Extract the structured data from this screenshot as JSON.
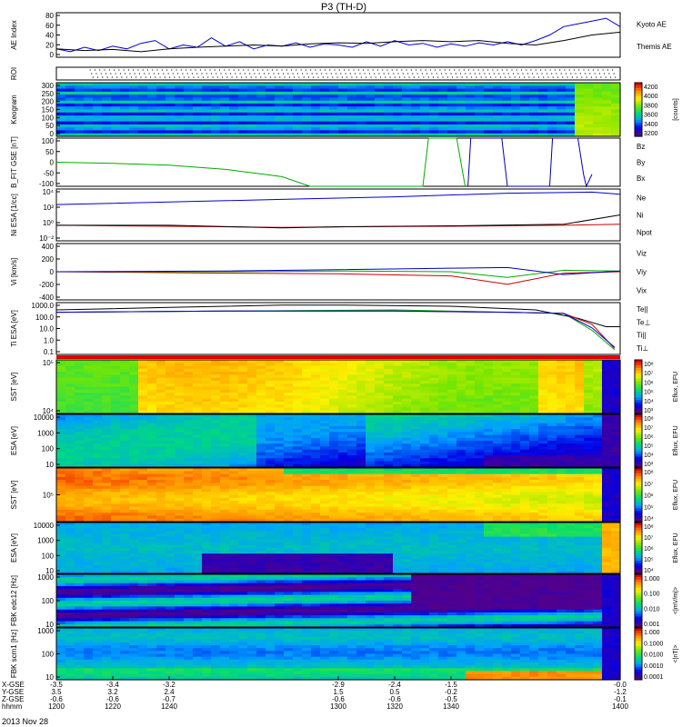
{
  "title": "P3 (TH-D)",
  "date_label": "2013 Nov 28",
  "chart_data": [
    {
      "type": "line",
      "ylabel": "AE Index",
      "ylim": [
        0,
        80
      ],
      "yticks": [
        "0",
        "20",
        "40",
        "60",
        "80"
      ],
      "series": [
        {
          "name": "Kyoto AE",
          "color": "#0000cc",
          "x": [
            1200,
            1205,
            1210,
            1215,
            1220,
            1225,
            1230,
            1235,
            1240,
            1245,
            1250,
            1255,
            1260,
            1265,
            1270,
            1275,
            1280,
            1285,
            1290,
            1295,
            1300,
            1305,
            1310,
            1315,
            1320,
            1325,
            1330,
            1335,
            1340,
            1345,
            1350,
            1355,
            1360,
            1365,
            1370,
            1375,
            1380,
            1385,
            1390,
            1395,
            1400
          ],
          "y": [
            15,
            10,
            18,
            12,
            20,
            15,
            25,
            30,
            15,
            22,
            18,
            35,
            20,
            28,
            15,
            22,
            20,
            26,
            18,
            24,
            22,
            18,
            28,
            20,
            30,
            22,
            25,
            18,
            24,
            20,
            26,
            22,
            28,
            22,
            30,
            40,
            55,
            60,
            65,
            70,
            55
          ]
        },
        {
          "name": "Themis AE",
          "color": "#000000",
          "x": [
            1200,
            1210,
            1220,
            1230,
            1240,
            1250,
            1260,
            1270,
            1280,
            1290,
            1300,
            1310,
            1320,
            1330,
            1340,
            1350,
            1360,
            1370,
            1380,
            1390,
            1400
          ],
          "y": [
            15,
            12,
            14,
            10,
            15,
            18,
            20,
            22,
            20,
            24,
            26,
            25,
            28,
            30,
            28,
            30,
            25,
            22,
            30,
            40,
            45
          ]
        }
      ],
      "right_labels": [
        {
          "text": "Kyoto AE",
          "color": "#0000cc"
        },
        {
          "text": "Themis AE",
          "color": "#000000"
        }
      ]
    },
    {
      "type": "line",
      "ylabel": "ROI",
      "yticks": [],
      "series": []
    },
    {
      "type": "heatmap",
      "ylabel": "Keogram",
      "ylim": [
        0,
        300
      ],
      "yticks": [
        "0",
        "50",
        "100",
        "150",
        "200",
        "250",
        "300"
      ],
      "colorbar": {
        "label": "[counts]",
        "ticks": [
          "4200",
          "4000",
          "3800",
          "3600",
          "3400",
          "3200"
        ],
        "scheme": "rainbow"
      }
    },
    {
      "type": "line",
      "ylabel": "B_FIT GSE [nT]",
      "ylim": [
        -100,
        100
      ],
      "yticks": [
        "-100",
        "-50",
        "0",
        "50",
        "100"
      ],
      "series": [
        {
          "name": "Bz",
          "color": "#cc0000",
          "x": [],
          "y": []
        },
        {
          "name": "By",
          "color": "#00aa00",
          "x": [
            1200,
            1220,
            1240,
            1260,
            1280,
            1290,
            1330,
            1332,
            1342,
            1345
          ],
          "y": [
            0,
            -5,
            -12,
            -30,
            -60,
            -100,
            -100,
            100,
            100,
            -100
          ]
        },
        {
          "name": "Bx",
          "color": "#0000aa",
          "x": [
            1346,
            1347,
            1358,
            1360,
            1375,
            1376,
            1385,
            1387,
            1388,
            1390
          ],
          "y": [
            -100,
            100,
            100,
            -100,
            -100,
            100,
            100,
            -50,
            -100,
            -50
          ]
        }
      ],
      "right_labels": [
        {
          "text": "Bz",
          "color": "#cc0000"
        },
        {
          "text": "By",
          "color": "#00aa00"
        },
        {
          "text": "Bx",
          "color": "#0000aa"
        }
      ]
    },
    {
      "type": "line",
      "ylabel": "Ni ESA [1/cc]",
      "ylim": [
        -4,
        6
      ],
      "log_scale": true,
      "yticks": [
        "10⁻²",
        "10⁰",
        "10²",
        "10⁴"
      ],
      "series": [
        {
          "name": "Ne",
          "color": "#cc0000",
          "x": [
            1200,
            1240,
            1280,
            1300,
            1340,
            1380,
            1400
          ],
          "y": [
            -1,
            -1.2,
            -1.4,
            -1.3,
            -1.2,
            -1,
            -0.8
          ]
        },
        {
          "name": "Ni",
          "color": "#000000",
          "x": [
            1200,
            1240,
            1280,
            1300,
            1340,
            1380,
            1400
          ],
          "y": [
            -1,
            -1,
            -1.5,
            -1.3,
            -1.1,
            -0.8,
            1
          ]
        },
        {
          "name": "Npot",
          "color": "#0000cc",
          "x": [
            1200,
            1240,
            1280,
            1320,
            1360,
            1390,
            1400
          ],
          "y": [
            3,
            3.5,
            4,
            4.5,
            5.2,
            5.4,
            5
          ]
        }
      ],
      "right_labels": [
        {
          "text": "Ne",
          "color": "#cc0000"
        },
        {
          "text": "Ni",
          "color": "#000000"
        },
        {
          "text": "Npot",
          "color": "#0000cc"
        }
      ]
    },
    {
      "type": "line",
      "ylabel": "Vi [km/s]",
      "ylim": [
        -400,
        400
      ],
      "yticks": [
        "-400",
        "-200",
        "0",
        "200",
        "400"
      ],
      "series": [
        {
          "name": "Viz",
          "color": "#cc0000",
          "x": [
            1200,
            1260,
            1300,
            1340,
            1360,
            1380,
            1400
          ],
          "y": [
            0,
            -20,
            -30,
            -60,
            -180,
            -20,
            0
          ]
        },
        {
          "name": "Viy",
          "color": "#00aa00",
          "x": [
            1200,
            1260,
            1300,
            1340,
            1360,
            1380,
            1400
          ],
          "y": [
            0,
            0,
            10,
            0,
            -80,
            20,
            10
          ]
        },
        {
          "name": "Vix",
          "color": "#0000cc",
          "x": [
            1200,
            1260,
            1300,
            1340,
            1360,
            1380,
            1400
          ],
          "y": [
            0,
            10,
            30,
            50,
            60,
            -40,
            10
          ]
        }
      ],
      "right_labels": [
        {
          "text": "Viz",
          "color": "#cc0000"
        },
        {
          "text": "Viy",
          "color": "#00aa00"
        },
        {
          "text": "Vix",
          "color": "#0000cc"
        }
      ]
    },
    {
      "type": "line",
      "ylabel": "Ti ESA [eV]",
      "ylim": [
        -1,
        3.3
      ],
      "log_scale": true,
      "yticks": [
        "0.1",
        "1.0",
        "10.0",
        "100.0",
        "1000.0"
      ],
      "series": [
        {
          "name": "Te||",
          "color": "#000000",
          "x": [
            1200,
            1240,
            1280,
            1300,
            1340,
            1370,
            1385,
            1395,
            1400
          ],
          "y": [
            2.7,
            2.9,
            3.1,
            3.1,
            3.0,
            2.7,
            2.0,
            1.3,
            1.3
          ]
        },
        {
          "name": "Te⊥",
          "color": "#cc0000",
          "x": [
            1200,
            1260,
            1320,
            1360,
            1380,
            1390,
            1398
          ],
          "y": [
            2.5,
            2.6,
            2.6,
            2.5,
            2.4,
            1.5,
            -0.5
          ]
        },
        {
          "name": "Ti||",
          "color": "#00aa00",
          "x": [
            1200,
            1260,
            1320,
            1360,
            1380,
            1390,
            1398
          ],
          "y": [
            2.5,
            2.6,
            2.7,
            2.5,
            2.4,
            1.0,
            -0.6
          ]
        },
        {
          "name": "Ti⊥",
          "color": "#0000cc",
          "x": [
            1200,
            1260,
            1320,
            1360,
            1380,
            1390,
            1398
          ],
          "y": [
            2.5,
            2.6,
            2.6,
            2.5,
            2.4,
            1.2,
            -0.4
          ]
        }
      ],
      "right_labels": [
        {
          "text": "Te||",
          "color": "#000000"
        },
        {
          "text": "Te⊥",
          "color": "#cc0000"
        },
        {
          "text": "Ti||",
          "color": "#00aa00"
        },
        {
          "text": "Ti⊥",
          "color": "#0000cc"
        }
      ]
    },
    {
      "type": "heatmap",
      "ylabel": "SST [eV]",
      "yticks": [
        "10⁴",
        "10⁵"
      ],
      "colorbar": {
        "label": "Eflux, EFU",
        "ticks": [
          "10⁸",
          "10⁷",
          "10⁶",
          "10⁵",
          "10⁴",
          "10³"
        ],
        "scheme": "rainbow"
      }
    },
    {
      "type": "heatmap",
      "ylabel": "ESA [eV]",
      "yticks": [
        "10",
        "100",
        "1000",
        "10000"
      ],
      "colorbar": {
        "label": "Eflux, EFU",
        "ticks": [
          "10⁸",
          "10⁷",
          "10⁶",
          "10⁵",
          "10⁴",
          "10³"
        ],
        "scheme": "rainbow"
      }
    },
    {
      "type": "heatmap",
      "ylabel": "SST [eV]",
      "yticks": [
        "10⁵"
      ],
      "colorbar": {
        "label": "Eflux, EFU",
        "ticks": [
          "10⁸",
          "10⁷",
          "10⁶",
          "10⁵",
          "10⁴"
        ],
        "scheme": "rainbow"
      }
    },
    {
      "type": "heatmap",
      "ylabel": "ESA [eV]",
      "yticks": [
        "10",
        "100",
        "1000",
        "10000"
      ],
      "colorbar": {
        "label": "Eflux, EFU",
        "ticks": [
          "10⁸",
          "10⁷",
          "10⁶",
          "10⁵",
          "10⁴"
        ],
        "scheme": "rainbow"
      }
    },
    {
      "type": "heatmap",
      "ylabel": "FBK edc12 [Hz]",
      "yticks": [
        "10",
        "100",
        "1000"
      ],
      "colorbar": {
        "label": "<|mV/m|>",
        "ticks": [
          "1.000",
          "0.100",
          "0.010",
          "0.001"
        ],
        "scheme": "rainbow"
      }
    },
    {
      "type": "heatmap",
      "ylabel": "FBK scm1 [Hz]",
      "yticks": [
        "10",
        "100",
        "1000"
      ],
      "colorbar": {
        "label": "<|nT|>",
        "ticks": [
          "1.000",
          "0.1000",
          "0.0100",
          "0.0010",
          "0.0001"
        ],
        "scheme": "rainbow"
      }
    }
  ],
  "xaxis": {
    "xlim": [
      1200,
      1400
    ],
    "row_labels": [
      "X-GSE",
      "Y-GSE",
      "Z-GSE",
      "hhmm"
    ],
    "ticks": [
      {
        "hhmm": "1200",
        "x": "-3.5",
        "y": "3.5",
        "z": "-0.6"
      },
      {
        "hhmm": "1220",
        "x": "-3.4",
        "y": "3.2",
        "z": "-0.6"
      },
      {
        "hhmm": "1240",
        "x": "-3.2",
        "y": "2.4",
        "z": "-0.7"
      },
      {
        "hhmm": "1300",
        "x": "-2.9",
        "y": "1.5",
        "z": "-0.6"
      },
      {
        "hhmm": "1320",
        "x": "-2.4",
        "y": "0.5",
        "z": "-0.6"
      },
      {
        "hhmm": "1340",
        "x": "-1.5",
        "y": "-0.2",
        "z": "-0.5"
      },
      {
        "hhmm": "1400",
        "x": "-0.0",
        "y": "-1.2",
        "z": "-0.1"
      }
    ]
  }
}
